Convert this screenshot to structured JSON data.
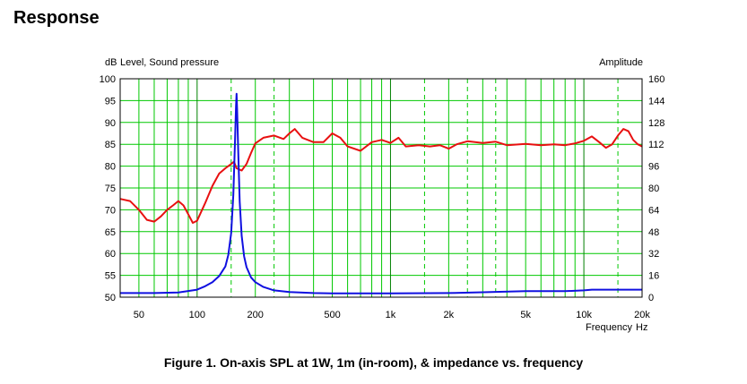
{
  "page": {
    "heading": "Response",
    "caption": "Figure 1. On-axis SPL at 1W, 1m (in-room), & impedance vs. frequency"
  },
  "chart_data": {
    "type": "line",
    "x_scale": "log",
    "xlim": [
      40,
      20000
    ],
    "ylim": [
      50,
      100
    ],
    "ylim_right": [
      0,
      160
    ],
    "ylabel": "Level, Sound pressure",
    "ylabel_unit": "dB",
    "ylabel_right": "Amplitude",
    "xlabel": "Frequency",
    "xlabel_unit": "Hz",
    "y_ticks": [
      100,
      95,
      90,
      85,
      80,
      75,
      70,
      65,
      60,
      55,
      50
    ],
    "y_ticks_right": [
      160,
      144,
      128,
      112,
      96,
      80,
      64,
      48,
      32,
      16,
      0
    ],
    "x_ticks": [
      {
        "value": 50,
        "label": "50"
      },
      {
        "value": 100,
        "label": "100"
      },
      {
        "value": 200,
        "label": "200"
      },
      {
        "value": 500,
        "label": "500"
      },
      {
        "value": 1000,
        "label": "1k"
      },
      {
        "value": 2000,
        "label": "2k"
      },
      {
        "value": 5000,
        "label": "5k"
      },
      {
        "value": 10000,
        "label": "10k"
      },
      {
        "value": 20000,
        "label": "20k"
      }
    ],
    "grid": true,
    "colors": {
      "spl": "#e81010",
      "impedance": "#1010e0",
      "grid": "#00c800",
      "grid_major": "#008000"
    },
    "series": [
      {
        "axis": "left",
        "color": "#e81010",
        "x": [
          40,
          45,
          50,
          55,
          60,
          65,
          70,
          75,
          80,
          85,
          90,
          95,
          100,
          110,
          120,
          130,
          140,
          150,
          155,
          160,
          170,
          180,
          190,
          200,
          220,
          250,
          280,
          300,
          320,
          350,
          400,
          450,
          500,
          550,
          600,
          700,
          800,
          900,
          1000,
          1100,
          1200,
          1400,
          1600,
          1800,
          2000,
          2200,
          2500,
          3000,
          3500,
          4000,
          5000,
          6000,
          7000,
          8000,
          9000,
          10000,
          11000,
          12000,
          13000,
          14000,
          15000,
          16000,
          17000,
          18000,
          19000,
          20000
        ],
        "values": [
          72.5,
          72.0,
          70.0,
          67.7,
          67.3,
          68.5,
          70.0,
          71.0,
          72.0,
          71.0,
          69.0,
          67.0,
          67.5,
          71.5,
          75.5,
          78.3,
          79.5,
          80.5,
          81.0,
          79.5,
          79.0,
          80.5,
          83.0,
          85.2,
          86.5,
          87.0,
          86.2,
          87.5,
          88.5,
          86.5,
          85.5,
          85.5,
          87.5,
          86.5,
          84.5,
          83.5,
          85.5,
          86.0,
          85.3,
          86.5,
          84.5,
          84.8,
          84.5,
          84.8,
          84.0,
          85.0,
          85.7,
          85.3,
          85.6,
          84.8,
          85.1,
          84.8,
          85.0,
          84.8,
          85.2,
          85.8,
          86.8,
          85.5,
          84.2,
          85.0,
          87.0,
          88.5,
          88.0,
          86.0,
          85.0,
          84.5
        ]
      },
      {
        "axis": "right",
        "color": "#1010e0",
        "x": [
          40,
          60,
          80,
          90,
          100,
          110,
          120,
          130,
          140,
          145,
          150,
          154,
          157,
          159,
          160,
          161,
          163,
          166,
          170,
          175,
          180,
          190,
          200,
          220,
          250,
          300,
          400,
          500,
          1000,
          2000,
          3000,
          5000,
          8000,
          10000,
          11000,
          15000,
          20000
        ],
        "values": [
          3.0,
          3.0,
          3.5,
          4.5,
          5.5,
          8.0,
          11.0,
          15.5,
          22.5,
          31.0,
          47.0,
          75.0,
          115.0,
          140.0,
          149.0,
          138.0,
          108.0,
          70.0,
          45.0,
          30.0,
          22.0,
          14.5,
          11.0,
          7.5,
          5.0,
          3.8,
          3.0,
          2.8,
          2.8,
          3.0,
          3.6,
          4.4,
          4.4,
          5.0,
          5.5,
          5.5,
          5.5
        ]
      }
    ]
  }
}
